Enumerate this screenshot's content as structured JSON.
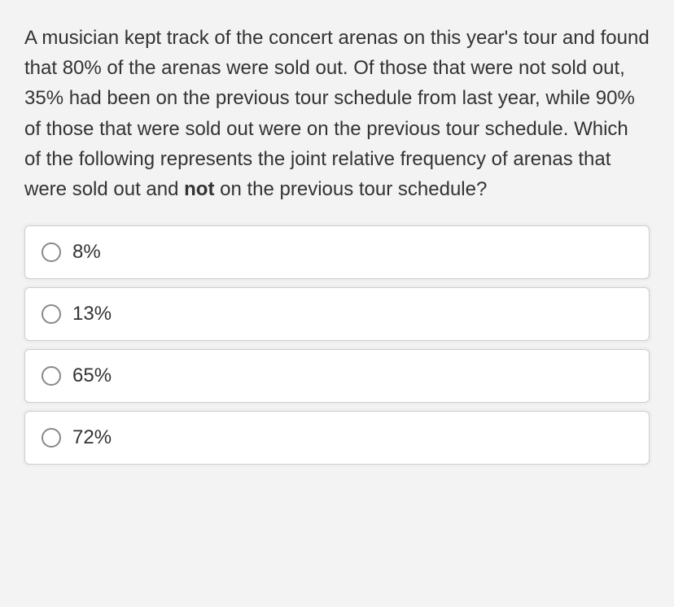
{
  "question": {
    "text_before_bold": "A musician kept track of the concert arenas on this year's tour and found that 80% of the arenas were sold out. Of those that were not sold out, 35% had been on the previous tour schedule from last year, while 90% of those that were sold out were on the previous tour schedule. Which of the following represents the joint relative frequency of arenas that were sold out and ",
    "bold_word": "not",
    "text_after_bold": " on the previous tour schedule?"
  },
  "options": [
    {
      "label": "8%"
    },
    {
      "label": "13%"
    },
    {
      "label": "65%"
    },
    {
      "label": "72%"
    }
  ],
  "style": {
    "background_color": "#f3f3f3",
    "option_background": "#ffffff",
    "option_border_color": "#cccccc",
    "radio_border_color": "#888888",
    "text_color": "#333333",
    "question_fontsize": 24,
    "option_fontsize": 24
  }
}
